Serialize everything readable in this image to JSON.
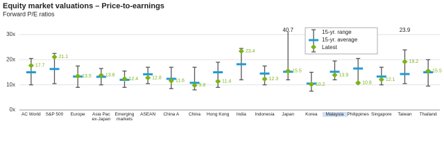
{
  "chart_data": {
    "type": "range",
    "title": "Equity market valuations – Price-to-earnings",
    "subtitle": "Forward P/E ratios",
    "categories": [
      "AC World",
      "S&P 500",
      "Europe",
      "Asia Pac ex-Japan",
      "Emerging markets",
      "ASEAN",
      "China A",
      "China",
      "Hong Kong",
      "India",
      "Indonesia",
      "Japan",
      "Korea",
      "Malaysia",
      "Philippines",
      "Singapore",
      "Taiwan",
      "Thailand"
    ],
    "series": [
      {
        "name": "15-yr. range",
        "color": "#555555",
        "low": [
          10,
          10.5,
          9,
          10,
          9,
          10.5,
          8.5,
          8,
          9,
          12,
          10,
          12,
          7.5,
          12,
          10.5,
          10,
          10.5,
          9.5
        ],
        "high": [
          20.5,
          22.5,
          17.5,
          16.5,
          15.5,
          17,
          17,
          17,
          19,
          24.5,
          17.5,
          40.7,
          15,
          19.5,
          20.5,
          17,
          23.9,
          20
        ]
      },
      {
        "name": "15-yr. average",
        "color": "#1f9ad6",
        "values": [
          15,
          16.3,
          13.3,
          13.2,
          12,
          14.2,
          12.4,
          10.8,
          15,
          18.2,
          14.5,
          15.2,
          10.5,
          15.2,
          16.5,
          13.3,
          14.3,
          15
        ]
      },
      {
        "name": "Latest",
        "color": "#7ab317",
        "values": [
          17.7,
          21.1,
          13.5,
          13.8,
          12.4,
          12.8,
          11.6,
          9.8,
          11.4,
          23.4,
          12.3,
          15.5,
          10.2,
          13.9,
          10.8,
          12.1,
          19.2,
          15.5
        ]
      }
    ],
    "ylim": [
      0,
      30
    ],
    "yticks": [
      {
        "value": 0,
        "label": "0x"
      },
      {
        "value": 10,
        "label": "10x"
      },
      {
        "value": 20,
        "label": "20x"
      },
      {
        "value": 30,
        "label": "30x"
      }
    ],
    "grid": true,
    "legend": "top-right"
  }
}
